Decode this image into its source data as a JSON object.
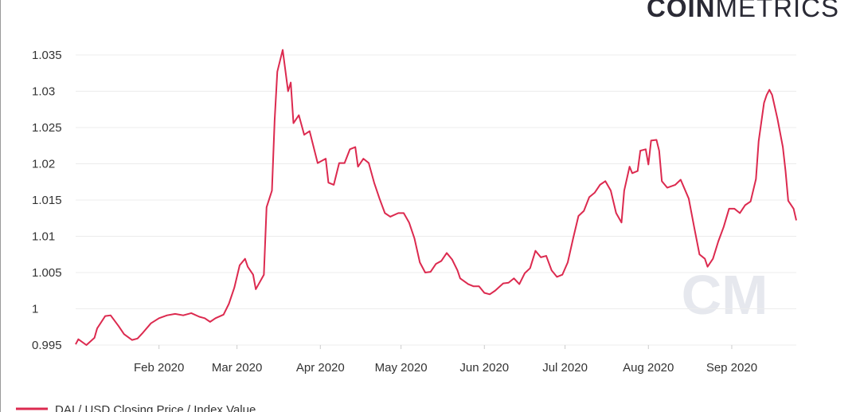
{
  "logo": {
    "bold": "COIN",
    "light": "METRICS"
  },
  "watermark": "CM",
  "chart_data": {
    "type": "line",
    "x": [
      0,
      1,
      4,
      7,
      8,
      11,
      13,
      16,
      18,
      21,
      23,
      25,
      28,
      31,
      34,
      37,
      40,
      43,
      46,
      48,
      50,
      52,
      55,
      57,
      59,
      61,
      63,
      64,
      66,
      67,
      70,
      71,
      73,
      74,
      75,
      77,
      79,
      80,
      81,
      83,
      85,
      87,
      90,
      93,
      94,
      96,
      98,
      100,
      102,
      104,
      105,
      107,
      109,
      111,
      113,
      115,
      117,
      120,
      122,
      124,
      126,
      128,
      130,
      132,
      134,
      136,
      138,
      140,
      142,
      143,
      146,
      148,
      150,
      152,
      154,
      156,
      159,
      161,
      163,
      165,
      167,
      169,
      171,
      173,
      175,
      177,
      179,
      181,
      183,
      185,
      187,
      189,
      191,
      193,
      195,
      197,
      199,
      201,
      203,
      204,
      206,
      207,
      209,
      210,
      212,
      213,
      214,
      216,
      217,
      218,
      220,
      223,
      225,
      228,
      230,
      232,
      234,
      235,
      237,
      239,
      241,
      243,
      245,
      247,
      249,
      251,
      253,
      254,
      256,
      257,
      258,
      259,
      261,
      263,
      264,
      265,
      267,
      268
    ],
    "series": [
      {
        "name": "DAI / USD Closing Price / Index Value",
        "color": "#dc2a4f",
        "values": [
          0.9951,
          0.9958,
          0.995,
          0.996,
          0.9973,
          0.999,
          0.9991,
          0.9976,
          0.9965,
          0.9957,
          0.9959,
          0.9967,
          0.998,
          0.9987,
          0.9991,
          0.9993,
          0.9991,
          0.9994,
          0.9989,
          0.9987,
          0.9982,
          0.9987,
          0.9992,
          1.0007,
          1.0029,
          1.006,
          1.0069,
          1.0058,
          1.0047,
          1.0027,
          1.0047,
          1.014,
          1.0163,
          1.026,
          1.0327,
          1.0357,
          1.03,
          1.0312,
          1.0256,
          1.0267,
          1.024,
          1.0245,
          1.0201,
          1.0207,
          1.0174,
          1.0171,
          1.0201,
          1.0201,
          1.022,
          1.0223,
          1.0196,
          1.0207,
          1.0201,
          1.0174,
          1.0152,
          1.0132,
          1.0127,
          1.0132,
          1.0132,
          1.0119,
          1.0097,
          1.0064,
          1.005,
          1.0051,
          1.0062,
          1.0066,
          1.0077,
          1.0068,
          1.0053,
          1.0042,
          1.0034,
          1.0031,
          1.0031,
          1.0022,
          1.002,
          1.0025,
          1.0035,
          1.0036,
          1.0042,
          1.0034,
          1.0049,
          1.0056,
          1.008,
          1.0071,
          1.0073,
          1.0053,
          1.0044,
          1.0047,
          1.0064,
          1.0097,
          1.0128,
          1.0135,
          1.0154,
          1.016,
          1.0171,
          1.0176,
          1.0163,
          1.0132,
          1.0119,
          1.0163,
          1.0196,
          1.0187,
          1.019,
          1.0218,
          1.022,
          1.0199,
          1.0232,
          1.0233,
          1.0218,
          1.0176,
          1.0167,
          1.0171,
          1.0178,
          1.0152,
          1.0113,
          1.0075,
          1.0069,
          1.0058,
          1.0069,
          1.0093,
          1.0113,
          1.0138,
          1.0138,
          1.0132,
          1.0143,
          1.0148,
          1.0179,
          1.0231,
          1.0284,
          1.0295,
          1.0302,
          1.0295,
          1.0262,
          1.0223,
          1.019,
          1.0149,
          1.0138,
          1.0122
        ]
      }
    ],
    "xlim": [
      0,
      268
    ],
    "xticks": [
      {
        "value": 31,
        "label": "Feb 2020"
      },
      {
        "value": 60,
        "label": "Mar 2020"
      },
      {
        "value": 91,
        "label": "Apr 2020"
      },
      {
        "value": 121,
        "label": "May 2020"
      },
      {
        "value": 152,
        "label": "Jun 2020"
      },
      {
        "value": 182,
        "label": "Jul 2020"
      },
      {
        "value": 213,
        "label": "Aug 2020"
      },
      {
        "value": 244,
        "label": "Sep 2020"
      }
    ],
    "ylim": [
      0.995,
      1.035
    ],
    "yticks": [
      0.995,
      1,
      1.005,
      1.01,
      1.015,
      1.02,
      1.025,
      1.03,
      1.035
    ],
    "grid": true
  }
}
